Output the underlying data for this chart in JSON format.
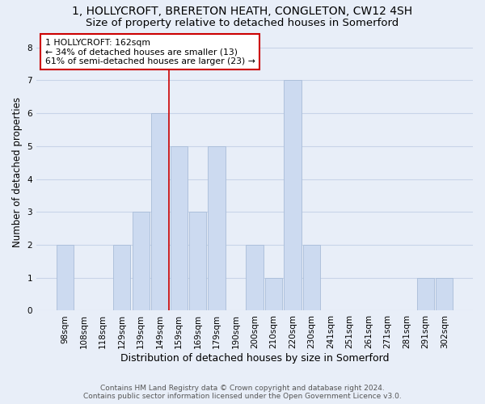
{
  "title": "1, HOLLYCROFT, BRERETON HEATH, CONGLETON, CW12 4SH",
  "subtitle": "Size of property relative to detached houses in Somerford",
  "xlabel": "Distribution of detached houses by size in Somerford",
  "ylabel": "Number of detached properties",
  "bar_labels": [
    "98sqm",
    "108sqm",
    "118sqm",
    "129sqm",
    "139sqm",
    "149sqm",
    "159sqm",
    "169sqm",
    "179sqm",
    "190sqm",
    "200sqm",
    "210sqm",
    "220sqm",
    "230sqm",
    "241sqm",
    "251sqm",
    "261sqm",
    "271sqm",
    "281sqm",
    "291sqm",
    "302sqm"
  ],
  "bar_heights": [
    2,
    0,
    0,
    2,
    3,
    6,
    5,
    3,
    5,
    0,
    2,
    1,
    7,
    2,
    0,
    0,
    0,
    0,
    0,
    1,
    1
  ],
  "bar_color": "#ccdaf0",
  "bar_edge_color": "#a8bcd8",
  "vline_color": "#cc0000",
  "annotation_title": "1 HOLLYCROFT: 162sqm",
  "annotation_line1": "← 34% of detached houses are smaller (13)",
  "annotation_line2": "61% of semi-detached houses are larger (23) →",
  "annotation_box_color": "#ffffff",
  "annotation_box_edge_color": "#cc0000",
  "ylim": [
    0,
    8.4
  ],
  "yticks": [
    0,
    1,
    2,
    3,
    4,
    5,
    6,
    7,
    8
  ],
  "grid_color": "#c8d4e8",
  "background_color": "#e8eef8",
  "footer_line1": "Contains HM Land Registry data © Crown copyright and database right 2024.",
  "footer_line2": "Contains public sector information licensed under the Open Government Licence v3.0.",
  "title_fontsize": 10,
  "subtitle_fontsize": 9.5,
  "xlabel_fontsize": 9,
  "ylabel_fontsize": 8.5,
  "tick_fontsize": 7.5,
  "footer_fontsize": 6.5
}
